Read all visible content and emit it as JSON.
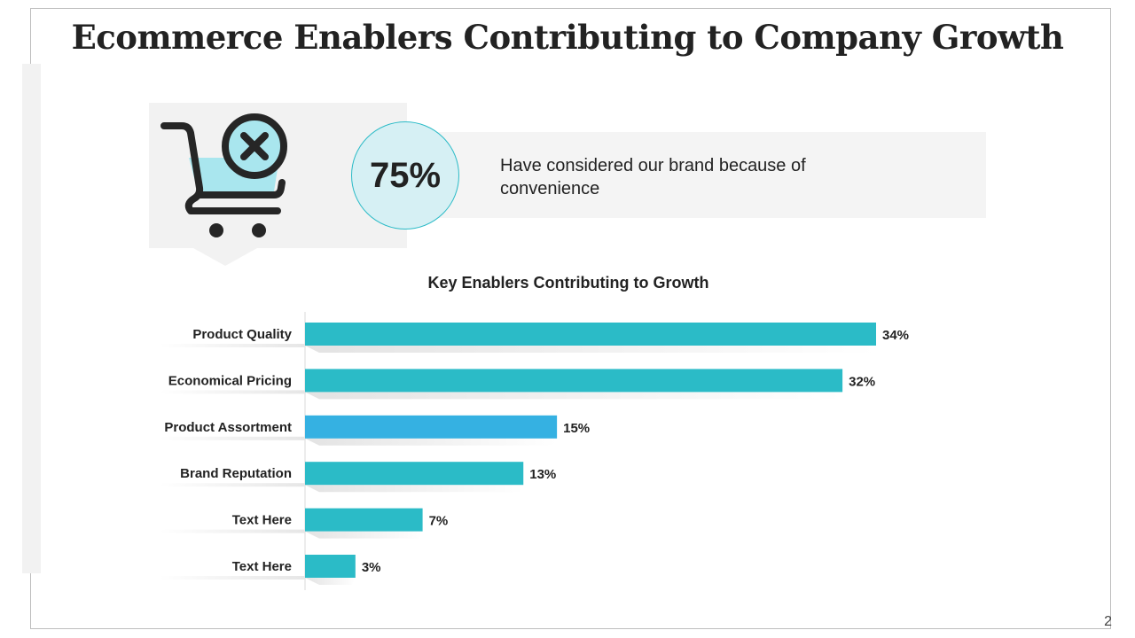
{
  "slide": {
    "title": "Ecommerce Enablers Contributing to Company Growth",
    "page_number": "2"
  },
  "stat": {
    "value": "75%",
    "text": "Have considered our brand because of convenience",
    "icon": "shopping-cart-remove-icon"
  },
  "colors": {
    "accent": "#2bbbc7",
    "highlight": "#35b1e2",
    "circle_fill": "#d6f0f4"
  },
  "chart_data": {
    "type": "bar",
    "orientation": "horizontal",
    "title": "Key Enablers Contributing to Growth",
    "categories": [
      "Product Quality",
      "Economical Pricing",
      "Product Assortment",
      "Brand Reputation",
      "Text Here",
      "Text Here"
    ],
    "values": [
      34,
      32,
      15,
      13,
      7,
      3
    ],
    "value_labels": [
      "34%",
      "32%",
      "15%",
      "13%",
      "7%",
      "3%"
    ],
    "unit": "%",
    "xlim": [
      0,
      34
    ],
    "highlight_index": 2,
    "grid": false,
    "legend": "none"
  }
}
